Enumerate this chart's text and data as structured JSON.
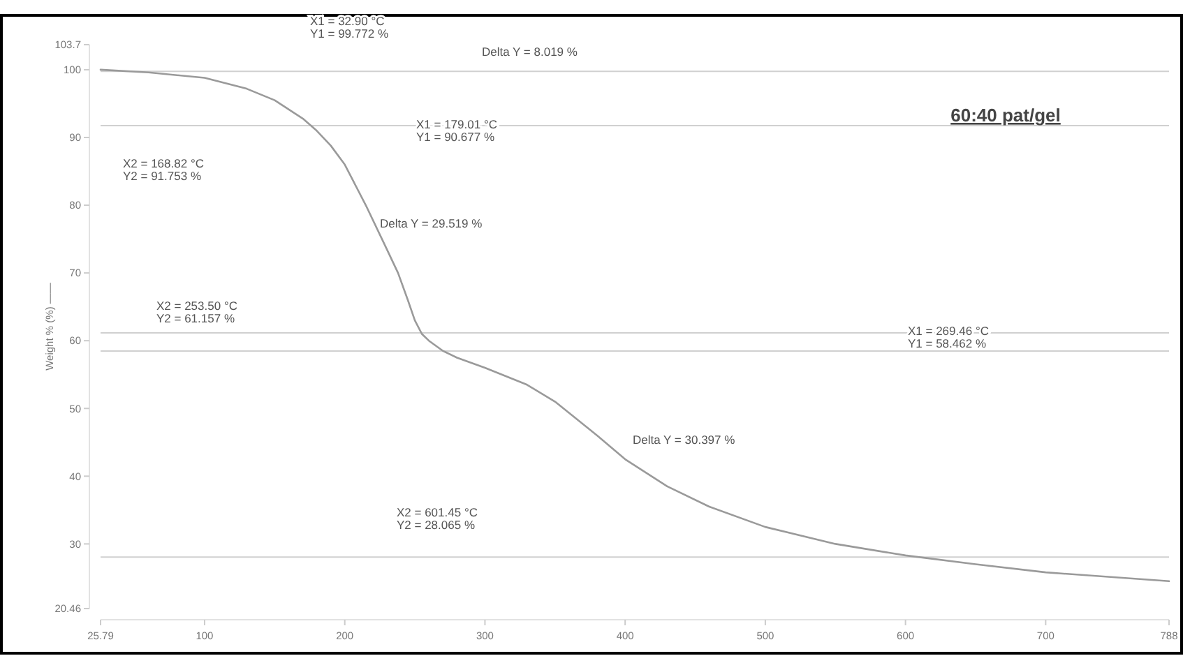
{
  "chart_data": {
    "type": "line",
    "title": "60:40 pat/gel",
    "ylabel": "Weight % (%) ——",
    "x": [
      25.79,
      60,
      100,
      130,
      150,
      170,
      180,
      190,
      200,
      215,
      230,
      238,
      245,
      250,
      255,
      260,
      270,
      280,
      300,
      330,
      350,
      380,
      400,
      430,
      460,
      500,
      550,
      600,
      650,
      700,
      788
    ],
    "series": [
      {
        "color": "#9a9a9a",
        "values": [
          100,
          99.6,
          98.8,
          97.2,
          95.5,
          92.8,
          91,
          88.8,
          86,
          80,
          73.5,
          70,
          66,
          63,
          61,
          60,
          58.5,
          57.5,
          56,
          53.5,
          51,
          46,
          42.5,
          38.5,
          35.5,
          32.5,
          30,
          28.3,
          27,
          25.8,
          24.5
        ]
      }
    ],
    "xlim": [
      25.79,
      788
    ],
    "ylim": [
      20.46,
      103.7
    ],
    "xticks": [
      25.79,
      100,
      200,
      300,
      400,
      500,
      600,
      700,
      788
    ],
    "yticks": [
      20.46,
      30,
      40,
      50,
      60,
      70,
      80,
      90,
      100,
      103.7
    ],
    "grid": false,
    "marker": "none",
    "line_style": "solid",
    "ref_lines": [
      {
        "axis": "y",
        "value": 99.772,
        "color": "#d0d0d0"
      },
      {
        "axis": "y",
        "value": 91.753,
        "color": "#d0d0d0"
      },
      {
        "axis": "y",
        "value": 61.157,
        "color": "#d0d0d0"
      },
      {
        "axis": "y",
        "value": 58.462,
        "color": "#d0d0d0"
      },
      {
        "axis": "y",
        "value": 28.065,
        "color": "#d0d0d0"
      }
    ],
    "annotations": [
      "X1 = 32.90 °C\nY1 = 99.772 %",
      "Delta Y = 8.019 %",
      "X1 = 179.01 °C\nY1 = 90.677 %",
      "X2 = 168.82 °C\nY2 = 91.753 %",
      "Delta Y = 29.519 %",
      "X2 = 253.50 °C\nY2 = 61.157 %",
      "X1 = 269.46 °C\nY1 = 58.462 %",
      "Delta Y = 30.397 %",
      "X2 = 601.45 °C\nY2 = 28.065 %"
    ]
  }
}
